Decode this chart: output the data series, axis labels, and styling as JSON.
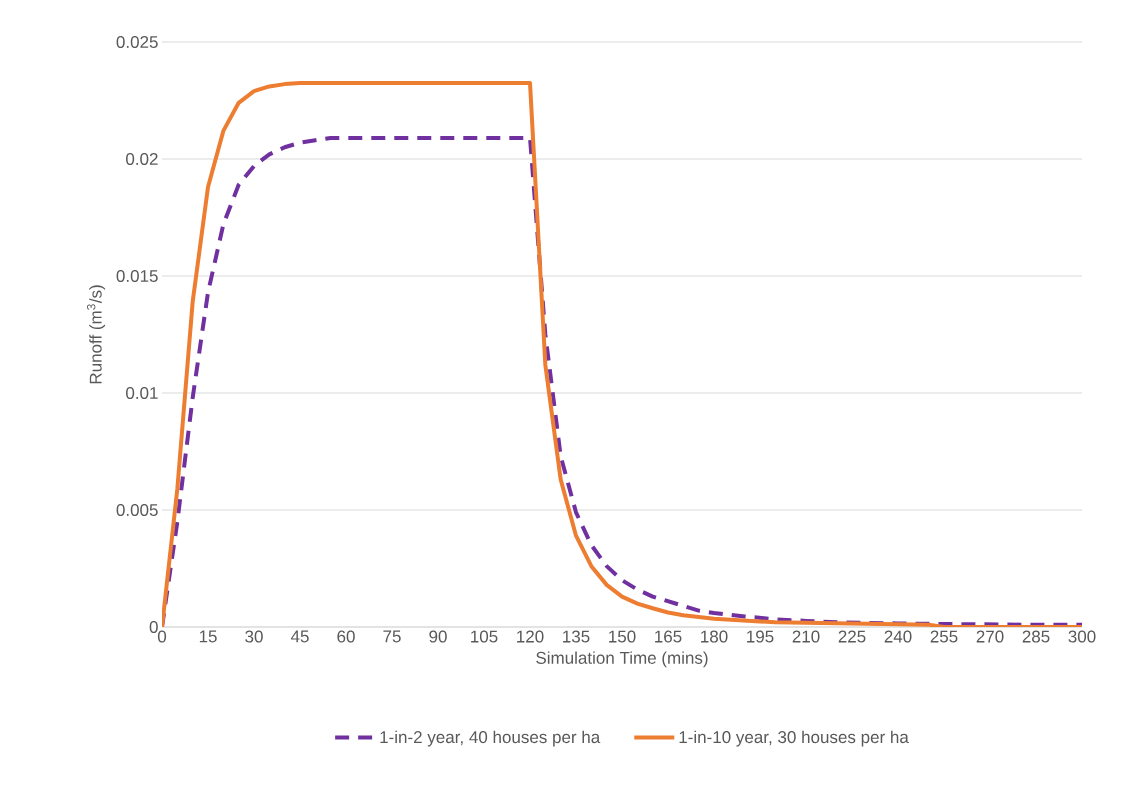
{
  "chart_data": {
    "type": "line",
    "xlabel": "Simulation Time (mins)",
    "ylabel": "Runoff (m$^{3}$/s)",
    "xlim": [
      0,
      300
    ],
    "xticks": [
      0,
      15,
      30,
      45,
      60,
      75,
      90,
      105,
      120,
      135,
      150,
      165,
      180,
      195,
      210,
      225,
      240,
      255,
      270,
      285,
      300
    ],
    "ylim": [
      0,
      0.025
    ],
    "yticks": [
      0,
      0.005,
      0.01,
      0.015,
      0.02,
      0.025
    ],
    "grid": "y",
    "legend": "bottom",
    "series": [
      {
        "name": "1-in-2 year, 40 houses per ha",
        "color": "#7030a0",
        "line_style": "dashed",
        "x": [
          0,
          5,
          10,
          15,
          20,
          25,
          30,
          35,
          40,
          45,
          50,
          55,
          60,
          120,
          125,
          130,
          135,
          140,
          145,
          150,
          155,
          160,
          165,
          170,
          175,
          180,
          190,
          200,
          210,
          220,
          240,
          260,
          280,
          300
        ],
        "values": [
          0,
          0.0045,
          0.0098,
          0.0143,
          0.0172,
          0.0189,
          0.0197,
          0.0202,
          0.0205,
          0.0207,
          0.0208,
          0.0209,
          0.0209,
          0.0209,
          0.0125,
          0.0073,
          0.0049,
          0.0035,
          0.0026,
          0.002,
          0.0016,
          0.0013,
          0.0011,
          0.0009,
          0.0007,
          0.0006,
          0.00045,
          0.00033,
          0.00026,
          0.0002,
          0.00015,
          0.00012,
          0.0001,
          0.0001
        ]
      },
      {
        "name": "1-in-10 year, 30 houses per ha",
        "color": "#ed7d31",
        "line_style": "solid",
        "x": [
          0,
          5,
          10,
          15,
          20,
          25,
          30,
          35,
          40,
          45,
          120,
          125,
          130,
          135,
          140,
          145,
          150,
          155,
          160,
          165,
          170,
          180,
          200,
          250,
          255,
          300
        ],
        "values": [
          0,
          0.0059,
          0.0139,
          0.0188,
          0.0212,
          0.0224,
          0.0229,
          0.0231,
          0.0232,
          0.02325,
          0.02325,
          0.0112,
          0.0063,
          0.0039,
          0.0026,
          0.0018,
          0.0013,
          0.001,
          0.0008,
          0.00062,
          0.0005,
          0.00035,
          0.0002,
          0.0001,
          0,
          0
        ]
      }
    ]
  }
}
